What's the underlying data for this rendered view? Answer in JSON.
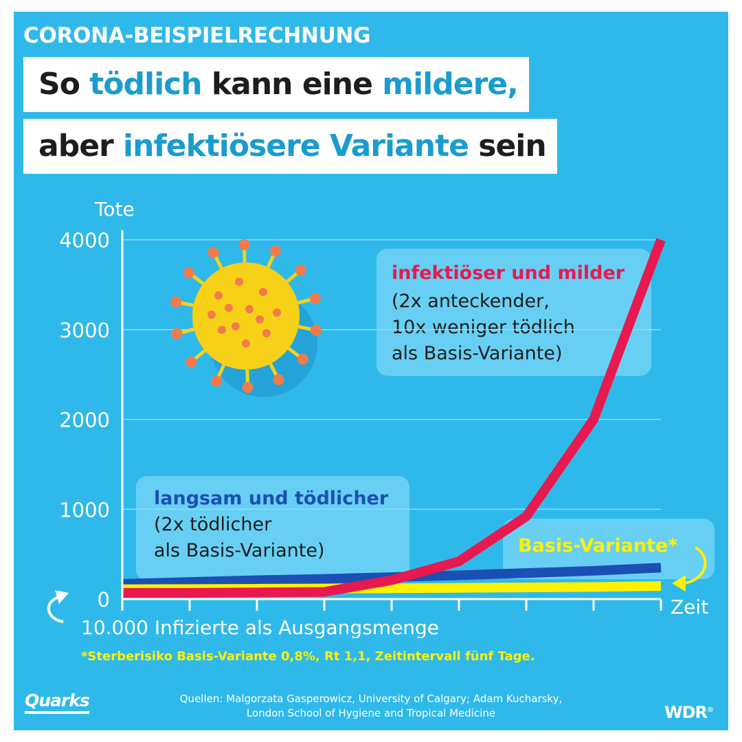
{
  "kicker": "CORONA-BEISPIELRECHNUNG",
  "headline": {
    "line1": {
      "p1": "So ",
      "h1": "tödlich",
      "p2": " kann eine ",
      "h2": "mildere,",
      "p3": ""
    },
    "line2": {
      "p1": "aber ",
      "h1": "infektiösere Variante",
      "p2": " sein"
    }
  },
  "colors": {
    "background": "#2fb9ea",
    "accent_text": "#1a9ccd",
    "red_series": "#e8194f",
    "blue_series": "#1b4fb4",
    "yellow_series": "#fff200",
    "virus_body": "#f7d117",
    "virus_spike": "#f47a4c"
  },
  "icons": {
    "illustration": "coronavirus-icon",
    "loop_left": "curved-arrow-icon",
    "loop_right": "curved-arrow-icon"
  },
  "callouts": {
    "red": {
      "title": "infektiöser und milder",
      "body": [
        "(2x anteckender,",
        "10x weniger tödlich",
        "als Basis-Variante)"
      ]
    },
    "blue": {
      "title": "langsam und tödlicher",
      "body": [
        "(2x tödlicher",
        "als Basis-Variante)"
      ]
    },
    "yellow": {
      "title": "Basis-Variante*"
    }
  },
  "chart_data": {
    "type": "line",
    "ylabel": "Tote",
    "xlabel": "Zeit",
    "ylim": [
      0,
      4000
    ],
    "yticks": [
      0,
      1000,
      2000,
      3000,
      4000
    ],
    "x": [
      0,
      1,
      2,
      3,
      4,
      5,
      6,
      7,
      8
    ],
    "xlim": [
      0,
      8
    ],
    "grid": true,
    "series": [
      {
        "key": "blue",
        "name": "langsam und tödlicher",
        "color": "#1b4fb4",
        "values": [
          170,
          190,
          210,
          225,
          245,
          265,
          290,
          315,
          350
        ]
      },
      {
        "key": "yellow",
        "name": "Basis-Variante*",
        "color": "#fff200",
        "values": [
          110,
          112,
          115,
          118,
          120,
          125,
          130,
          135,
          145
        ]
      },
      {
        "key": "red",
        "name": "infektiöser und milder",
        "color": "#e8194f",
        "values": [
          70,
          70,
          75,
          80,
          210,
          420,
          920,
          2000,
          4000
        ]
      }
    ],
    "start_note": "10.000 Infizierte als Ausgangsmenge",
    "footnote": "*Sterberisiko Basis-Variante 0,8%, Rt 1,1, Zeitintervall fünf Tage."
  },
  "footer": {
    "logo_left": "Quarks",
    "sources_line1": "Quellen: Malgorzata Gasperowicz, University of Calgary; Adam Kucharsky,",
    "sources_line2": "London School of Hygiene and Tropical Medicine",
    "logo_right": "WDR"
  }
}
